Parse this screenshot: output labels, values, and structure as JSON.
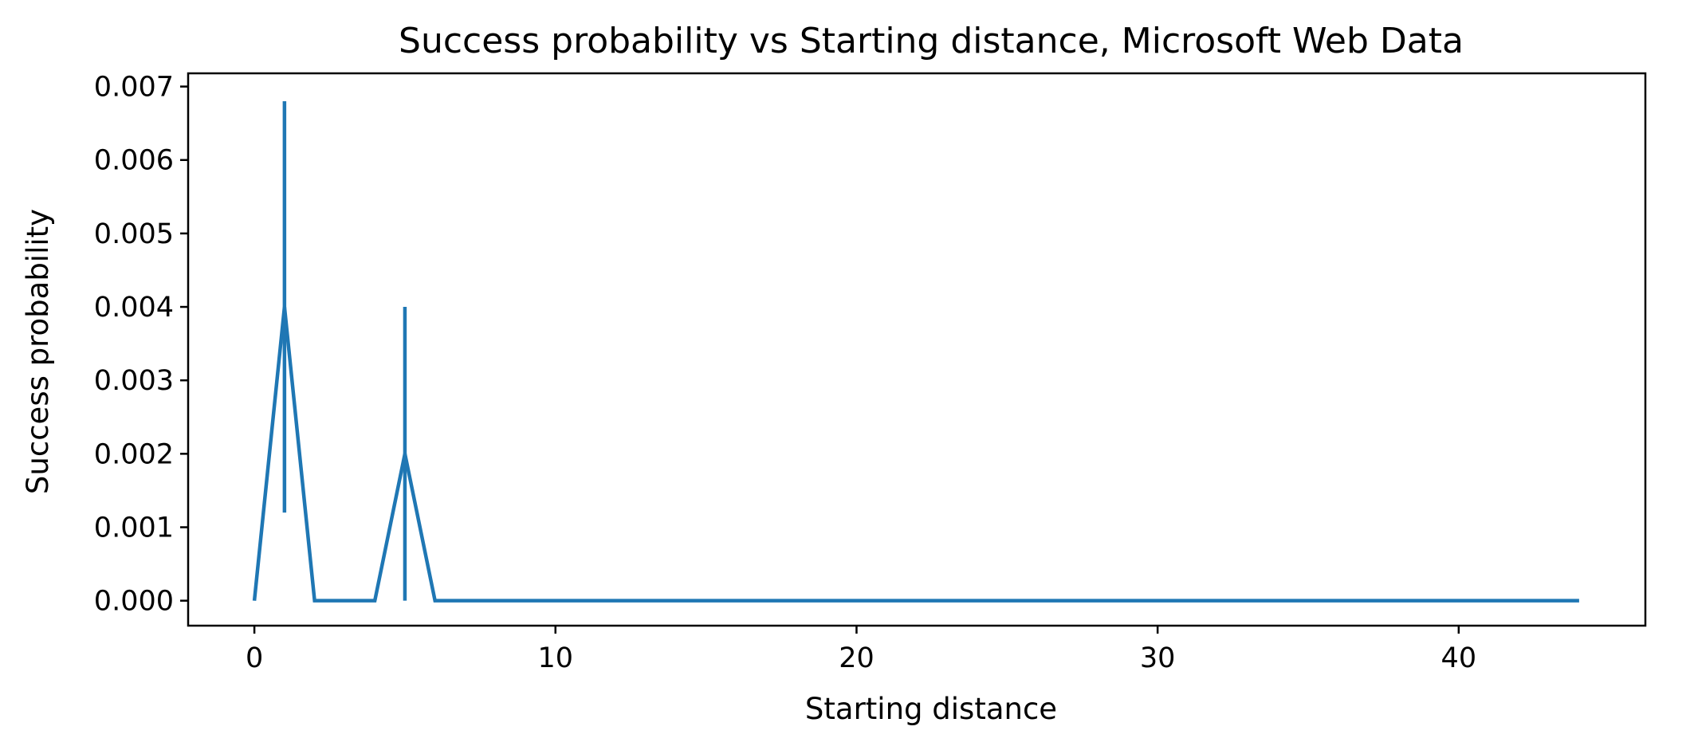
{
  "chart_data": {
    "type": "line",
    "title": "Success probability vs Starting distance, Microsoft Web Data",
    "xlabel": "Starting distance",
    "ylabel": "Success probability",
    "xlim": [
      -2.2,
      46.2
    ],
    "ylim": [
      -0.00034,
      0.00718
    ],
    "xticks": [
      0,
      10,
      20,
      30,
      40
    ],
    "xtick_labels": [
      "0",
      "10",
      "20",
      "30",
      "40"
    ],
    "yticks": [
      0,
      0.001,
      0.002,
      0.003,
      0.004,
      0.005,
      0.006,
      0.007
    ],
    "ytick_labels": [
      "0.000",
      "0.001",
      "0.002",
      "0.003",
      "0.004",
      "0.005",
      "0.006",
      "0.007"
    ],
    "grid": false,
    "series": [
      {
        "color": "#1f77b4",
        "x": [
          0,
          1,
          2,
          3,
          4,
          5,
          6,
          7,
          8,
          9,
          10,
          11,
          12,
          13,
          14,
          15,
          16,
          17,
          18,
          19,
          20,
          21,
          22,
          23,
          24,
          25,
          26,
          27,
          28,
          29,
          30,
          31,
          32,
          33,
          34,
          35,
          36,
          37,
          38,
          39,
          40,
          41,
          42,
          43,
          44
        ],
        "y": [
          0,
          0.004,
          0,
          0,
          0,
          0.002,
          0,
          0,
          0,
          0,
          0,
          0,
          0,
          0,
          0,
          0,
          0,
          0,
          0,
          0,
          0,
          0,
          0,
          0,
          0,
          0,
          0,
          0,
          0,
          0,
          0,
          0,
          0,
          0,
          0,
          0,
          0,
          0,
          0,
          0,
          0,
          0,
          0,
          0,
          0
        ],
        "error_bars": [
          {
            "x": 1,
            "low": 0.0012,
            "high": 0.0068
          },
          {
            "x": 5,
            "low": 0.0,
            "high": 0.004
          }
        ]
      }
    ]
  }
}
